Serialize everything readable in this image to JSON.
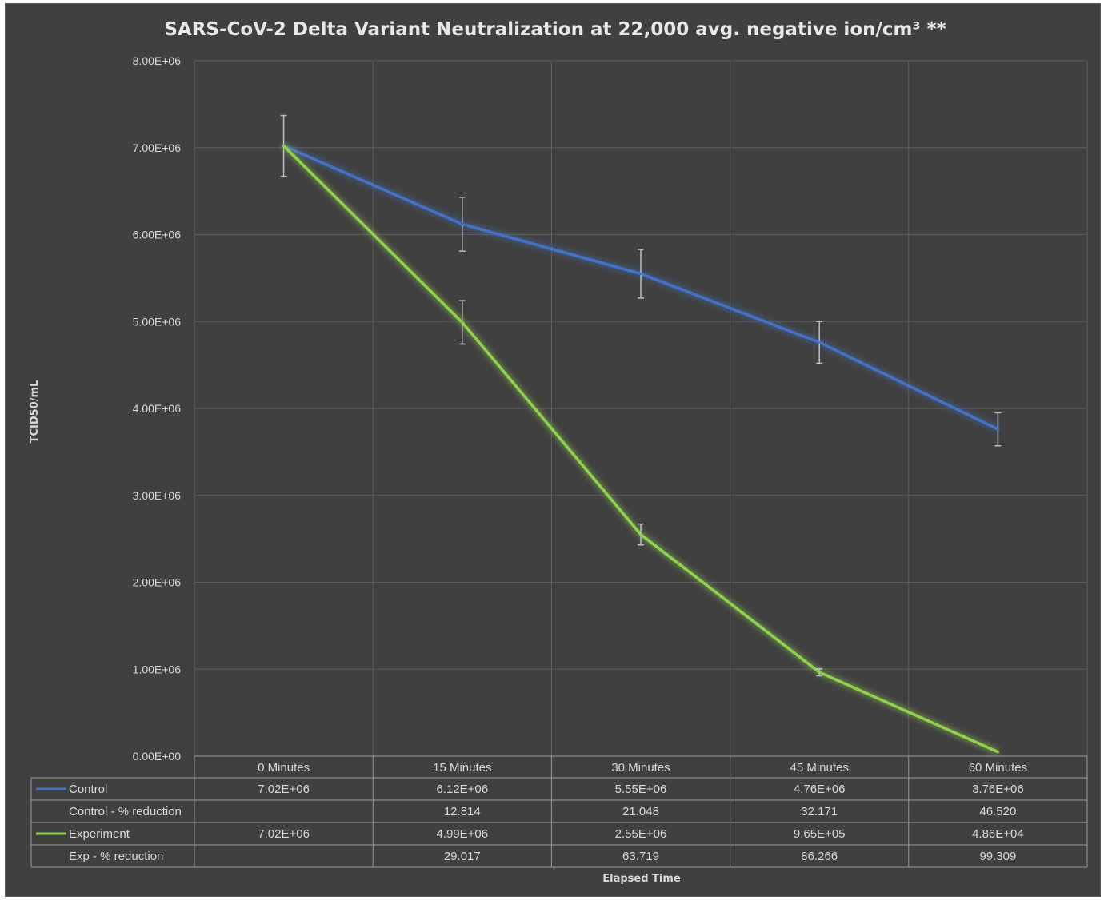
{
  "chart_data": {
    "type": "line",
    "title": "SARS-CoV-2 Delta Variant Neutralization at 22,000 avg. negative ion/cm³ **",
    "xlabel": "Elapsed Time",
    "ylabel": "TCID50/mL",
    "ylim": [
      0,
      8000000
    ],
    "y_ticks": [
      "0.00E+00",
      "1.00E+06",
      "2.00E+06",
      "3.00E+06",
      "4.00E+06",
      "5.00E+06",
      "6.00E+06",
      "7.00E+06",
      "8.00E+06"
    ],
    "categories": [
      "0 Minutes",
      "15 Minutes",
      "30 Minutes",
      "45 Minutes",
      "60 Minutes"
    ],
    "grid": true,
    "legend": "data-table",
    "series": [
      {
        "name": "Control",
        "color": "#4472c4",
        "values": [
          7020000,
          6120000,
          5550000,
          4760000,
          3760000
        ],
        "error": [
          350000,
          310000,
          280000,
          240000,
          190000
        ]
      },
      {
        "name": "Experiment",
        "color": "#92d050",
        "values": [
          7020000,
          4990000,
          2550000,
          965000,
          48600
        ],
        "error": [
          0,
          250000,
          120000,
          40000,
          0
        ]
      }
    ],
    "table": {
      "rows": [
        {
          "label": "Control",
          "legend_color": "#4472c4",
          "cells": [
            "7.02E+06",
            "6.12E+06",
            "5.55E+06",
            "4.76E+06",
            "3.76E+06"
          ]
        },
        {
          "label": "Control - % reduction",
          "legend_color": "",
          "cells": [
            "",
            "12.814",
            "21.048",
            "32.171",
            "46.520"
          ]
        },
        {
          "label": "Experiment",
          "legend_color": "#92d050",
          "cells": [
            "7.02E+06",
            "4.99E+06",
            "2.55E+06",
            "9.65E+05",
            "4.86E+04"
          ]
        },
        {
          "label": "Exp - % reduction",
          "legend_color": "",
          "cells": [
            "",
            "29.017",
            "63.719",
            "86.266",
            "99.309"
          ]
        }
      ]
    }
  },
  "colors": {
    "background": "#404040",
    "gridline": "#5e5e5e",
    "text": "#d9d9d9",
    "error_bar": "#bfbfbf"
  }
}
